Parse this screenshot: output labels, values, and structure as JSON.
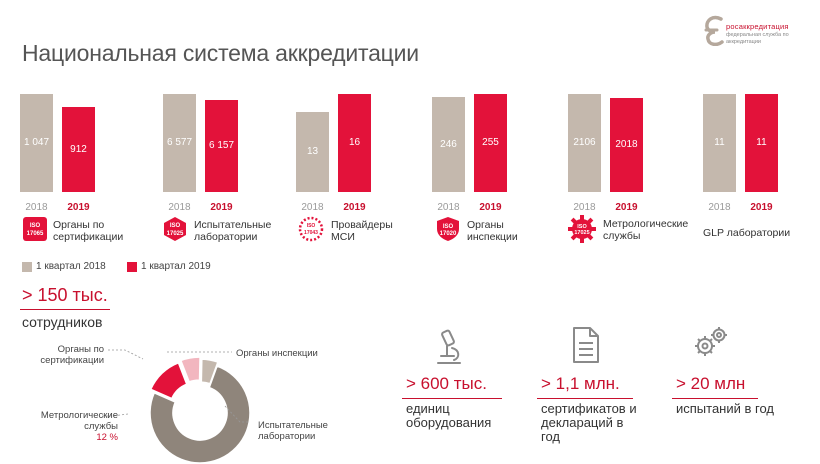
{
  "title": "Национальная система аккредитации",
  "logo": {
    "name": "росаккредитация",
    "subtitle": "федеральная служба по аккредитации"
  },
  "badges": {
    "iso17065": "ISO 17065",
    "iso17025": "ISO 17025",
    "iso17043": "ISO 17043",
    "iso17020": "ISO 17020",
    "iso17025b": "ISO 17025"
  },
  "chart_data": [
    {
      "type": "bar",
      "series": [
        {
          "name": "1 квартал 2018",
          "values": [
            1047,
            6577,
            13,
            246,
            2106,
            11
          ],
          "labels": [
            "1 047",
            "6 577",
            "13",
            "246",
            "2106",
            "11"
          ]
        },
        {
          "name": "1 квартал 2019",
          "values": [
            912,
            6157,
            16,
            255,
            2018,
            11
          ],
          "labels": [
            "912",
            "6 157",
            "16",
            "255",
            "2018",
            "11"
          ]
        }
      ],
      "categories": [
        "Органы по сертификации",
        "Испытательные лаборатории",
        "Провайдеры МСИ",
        "Органы инспекции",
        "Метрологические службы",
        "GLP лаборатории"
      ],
      "year_labels": [
        "2018",
        "2019"
      ],
      "legend": [
        "1 квартал 2018",
        "1 квартал 2019"
      ],
      "legend_position": "bottom-left",
      "colors": {
        "2018": "#c4b8ad",
        "2019": "#e3123a"
      }
    },
    {
      "type": "pie",
      "slices": [
        {
          "label": "Испытательные лаборатории",
          "value": 73,
          "color": "#8f857b"
        },
        {
          "label": "Метрологические службы",
          "value": 12,
          "value_label": "12 %",
          "color": "#e3123a"
        },
        {
          "label": "Органы по сертификации",
          "value": 6,
          "color": "#f2b6bf"
        },
        {
          "label": "Органы инспекции",
          "value": 5,
          "color": "#c4b8ad"
        }
      ]
    }
  ],
  "kpis": [
    {
      "value": "> 150 тыс.",
      "label": "сотрудников"
    },
    {
      "value": "> 600 тыс.",
      "label": "единиц оборудования",
      "icon": "microscope-icon"
    },
    {
      "value": "> 1,1 млн.",
      "label": "сертификатов и деклараций в год",
      "icon": "document-icon"
    },
    {
      "value": "> 20 млн",
      "label": "испытаний в год",
      "icon": "gears-icon"
    }
  ]
}
